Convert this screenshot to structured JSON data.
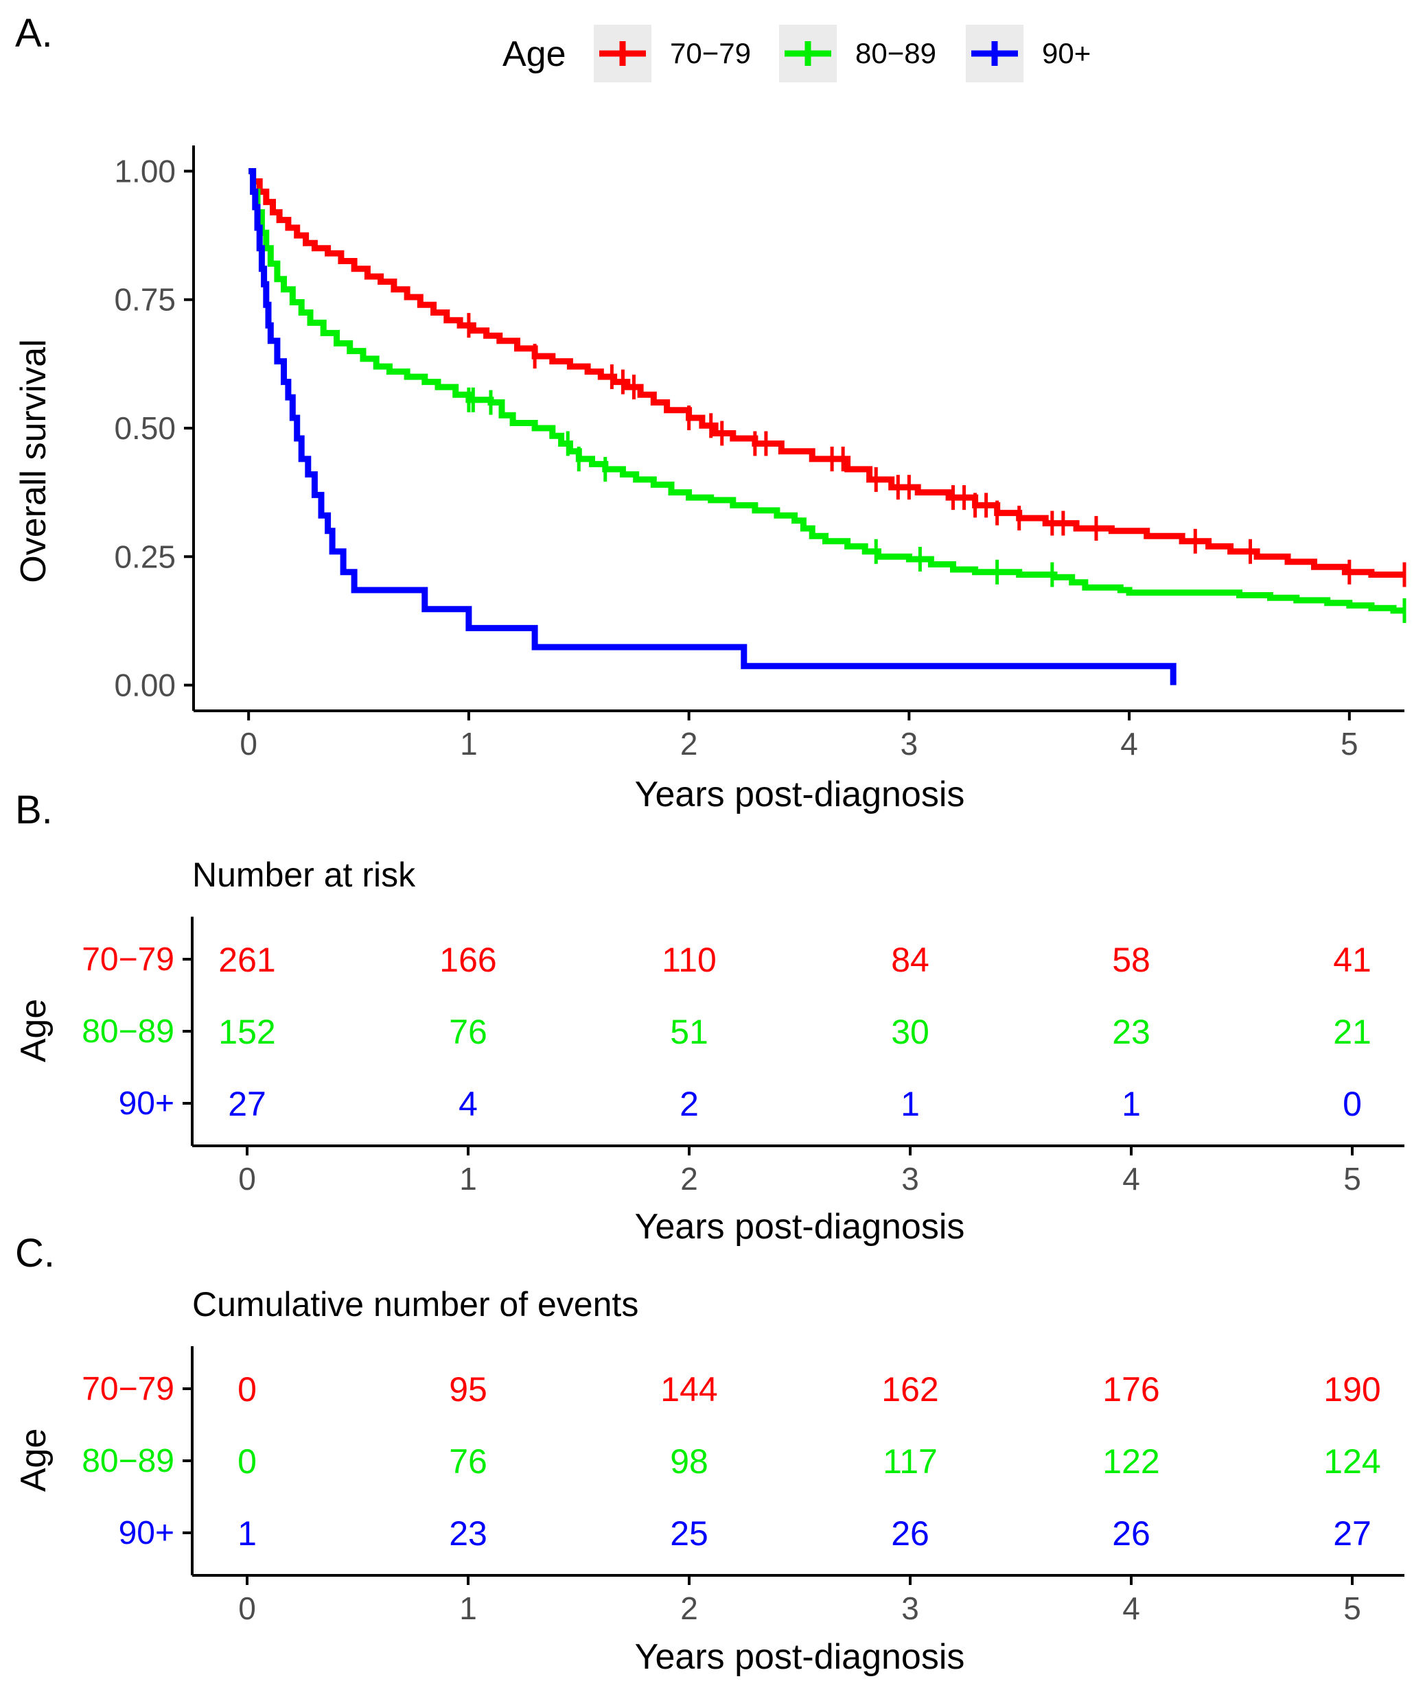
{
  "panel_labels": [
    "A.",
    "B.",
    "C."
  ],
  "colors": {
    "70-79": "#ff0000",
    "80-89": "#00ee00",
    "90+": "#0000ff",
    "axis": "#000000",
    "tick_label": "#4d4d4d",
    "legend_key_bg": "#ebebeb"
  },
  "chart_data": [
    {
      "type": "line",
      "subtype": "kaplan-meier step",
      "title": "",
      "xlabel": "Years post-diagnosis",
      "ylabel": "Overall survival",
      "xlim": [
        -0.25,
        5.25
      ],
      "ylim": [
        -0.05,
        1.05
      ],
      "x_ticks": [
        0,
        1,
        2,
        3,
        4,
        5
      ],
      "x_tick_labels": [
        "0",
        "1",
        "2",
        "3",
        "4",
        "5"
      ],
      "y_ticks": [
        0,
        0.25,
        0.5,
        0.75,
        1.0
      ],
      "y_tick_labels": [
        "0.00",
        "0.25",
        "0.50",
        "0.75",
        "1.00"
      ],
      "legend": {
        "title": "Age",
        "position": "top",
        "entries": [
          "70−79",
          "80−89",
          "90+"
        ]
      },
      "series": [
        {
          "name": "70−79",
          "color_key": "70-79",
          "points": [
            [
              0,
              1.0
            ],
            [
              0.02,
              0.98
            ],
            [
              0.05,
              0.96
            ],
            [
              0.08,
              0.94
            ],
            [
              0.11,
              0.92
            ],
            [
              0.14,
              0.905
            ],
            [
              0.18,
              0.89
            ],
            [
              0.22,
              0.875
            ],
            [
              0.26,
              0.86
            ],
            [
              0.3,
              0.85
            ],
            [
              0.36,
              0.84
            ],
            [
              0.42,
              0.825
            ],
            [
              0.48,
              0.81
            ],
            [
              0.54,
              0.795
            ],
            [
              0.6,
              0.785
            ],
            [
              0.66,
              0.77
            ],
            [
              0.72,
              0.755
            ],
            [
              0.78,
              0.74
            ],
            [
              0.84,
              0.725
            ],
            [
              0.9,
              0.71
            ],
            [
              0.96,
              0.7
            ],
            [
              1.02,
              0.69
            ],
            [
              1.08,
              0.68
            ],
            [
              1.14,
              0.67
            ],
            [
              1.22,
              0.655
            ],
            [
              1.3,
              0.64
            ],
            [
              1.38,
              0.63
            ],
            [
              1.46,
              0.62
            ],
            [
              1.54,
              0.61
            ],
            [
              1.6,
              0.6
            ],
            [
              1.66,
              0.59
            ],
            [
              1.72,
              0.58
            ],
            [
              1.78,
              0.565
            ],
            [
              1.84,
              0.55
            ],
            [
              1.9,
              0.535
            ],
            [
              2.0,
              0.52
            ],
            [
              2.06,
              0.505
            ],
            [
              2.12,
              0.49
            ],
            [
              2.2,
              0.48
            ],
            [
              2.3,
              0.47
            ],
            [
              2.42,
              0.455
            ],
            [
              2.56,
              0.44
            ],
            [
              2.72,
              0.42
            ],
            [
              2.82,
              0.4
            ],
            [
              2.92,
              0.385
            ],
            [
              3.04,
              0.375
            ],
            [
              3.18,
              0.365
            ],
            [
              3.3,
              0.35
            ],
            [
              3.4,
              0.335
            ],
            [
              3.5,
              0.325
            ],
            [
              3.62,
              0.315
            ],
            [
              3.76,
              0.305
            ],
            [
              3.92,
              0.3
            ],
            [
              4.08,
              0.29
            ],
            [
              4.24,
              0.28
            ],
            [
              4.36,
              0.27
            ],
            [
              4.46,
              0.26
            ],
            [
              4.58,
              0.25
            ],
            [
              4.72,
              0.24
            ],
            [
              4.84,
              0.23
            ],
            [
              4.98,
              0.22
            ],
            [
              5.1,
              0.215
            ],
            [
              5.25,
              0.215
            ]
          ],
          "censor_x": [
            1.0,
            1.3,
            1.65,
            1.7,
            1.75,
            2.0,
            2.1,
            2.15,
            2.3,
            2.35,
            2.65,
            2.7,
            2.85,
            2.95,
            3.0,
            3.2,
            3.25,
            3.3,
            3.35,
            3.4,
            3.5,
            3.65,
            3.7,
            3.85,
            4.3,
            4.55,
            5.0,
            5.25
          ]
        },
        {
          "name": "80−89",
          "color_key": "80-89",
          "points": [
            [
              0,
              1.0
            ],
            [
              0.02,
              0.96
            ],
            [
              0.04,
              0.92
            ],
            [
              0.06,
              0.88
            ],
            [
              0.08,
              0.85
            ],
            [
              0.1,
              0.82
            ],
            [
              0.13,
              0.79
            ],
            [
              0.16,
              0.77
            ],
            [
              0.2,
              0.745
            ],
            [
              0.24,
              0.725
            ],
            [
              0.28,
              0.705
            ],
            [
              0.34,
              0.685
            ],
            [
              0.4,
              0.665
            ],
            [
              0.46,
              0.65
            ],
            [
              0.52,
              0.635
            ],
            [
              0.58,
              0.62
            ],
            [
              0.64,
              0.61
            ],
            [
              0.72,
              0.6
            ],
            [
              0.8,
              0.59
            ],
            [
              0.86,
              0.58
            ],
            [
              0.94,
              0.565
            ],
            [
              1.0,
              0.555
            ],
            [
              1.1,
              0.55
            ],
            [
              1.15,
              0.525
            ],
            [
              1.2,
              0.51
            ],
            [
              1.3,
              0.5
            ],
            [
              1.38,
              0.485
            ],
            [
              1.42,
              0.47
            ],
            [
              1.46,
              0.455
            ],
            [
              1.5,
              0.44
            ],
            [
              1.56,
              0.43
            ],
            [
              1.62,
              0.42
            ],
            [
              1.7,
              0.41
            ],
            [
              1.76,
              0.4
            ],
            [
              1.84,
              0.39
            ],
            [
              1.92,
              0.375
            ],
            [
              2.0,
              0.365
            ],
            [
              2.1,
              0.36
            ],
            [
              2.2,
              0.35
            ],
            [
              2.3,
              0.34
            ],
            [
              2.4,
              0.33
            ],
            [
              2.48,
              0.32
            ],
            [
              2.52,
              0.305
            ],
            [
              2.56,
              0.29
            ],
            [
              2.62,
              0.28
            ],
            [
              2.72,
              0.27
            ],
            [
              2.8,
              0.26
            ],
            [
              2.86,
              0.25
            ],
            [
              3.0,
              0.245
            ],
            [
              3.1,
              0.235
            ],
            [
              3.2,
              0.225
            ],
            [
              3.3,
              0.22
            ],
            [
              3.5,
              0.215
            ],
            [
              3.66,
              0.21
            ],
            [
              3.74,
              0.2
            ],
            [
              3.8,
              0.19
            ],
            [
              3.96,
              0.185
            ],
            [
              4.0,
              0.18
            ],
            [
              4.2,
              0.18
            ],
            [
              4.5,
              0.175
            ],
            [
              4.64,
              0.17
            ],
            [
              4.76,
              0.165
            ],
            [
              4.9,
              0.16
            ],
            [
              5.0,
              0.155
            ],
            [
              5.1,
              0.15
            ],
            [
              5.2,
              0.145
            ],
            [
              5.25,
              0.145
            ]
          ],
          "censor_x": [
            1.0,
            1.02,
            1.1,
            1.45,
            1.5,
            1.62,
            2.85,
            3.05,
            3.4,
            3.65,
            5.25
          ]
        },
        {
          "name": "90+",
          "color_key": "90+",
          "points": [
            [
              0,
              1.0
            ],
            [
              0.02,
              0.96
            ],
            [
              0.03,
              0.93
            ],
            [
              0.04,
              0.89
            ],
            [
              0.05,
              0.85
            ],
            [
              0.06,
              0.81
            ],
            [
              0.07,
              0.78
            ],
            [
              0.08,
              0.74
            ],
            [
              0.09,
              0.7
            ],
            [
              0.1,
              0.67
            ],
            [
              0.13,
              0.63
            ],
            [
              0.16,
              0.59
            ],
            [
              0.18,
              0.56
            ],
            [
              0.2,
              0.52
            ],
            [
              0.22,
              0.48
            ],
            [
              0.24,
              0.44
            ],
            [
              0.27,
              0.41
            ],
            [
              0.3,
              0.37
            ],
            [
              0.33,
              0.33
            ],
            [
              0.36,
              0.3
            ],
            [
              0.38,
              0.26
            ],
            [
              0.43,
              0.22
            ],
            [
              0.48,
              0.185
            ],
            [
              0.8,
              0.185
            ],
            [
              0.8,
              0.148
            ],
            [
              1.0,
              0.148
            ],
            [
              1.0,
              0.111
            ],
            [
              1.3,
              0.111
            ],
            [
              1.3,
              0.074
            ],
            [
              2.25,
              0.074
            ],
            [
              2.25,
              0.037
            ],
            [
              4.2,
              0.037
            ],
            [
              4.2,
              0.0
            ]
          ],
          "censor_x": []
        }
      ]
    },
    {
      "type": "table",
      "title": "Number at risk",
      "xlabel": "Years post-diagnosis",
      "ylabel": "Age",
      "x_ticks": [
        0,
        1,
        2,
        3,
        4,
        5
      ],
      "x_tick_labels": [
        "0",
        "1",
        "2",
        "3",
        "4",
        "5"
      ],
      "rows": [
        {
          "label": "70−79",
          "color_key": "70-79",
          "values": [
            261,
            166,
            110,
            84,
            58,
            41
          ]
        },
        {
          "label": "80−89",
          "color_key": "80-89",
          "values": [
            152,
            76,
            51,
            30,
            23,
            21
          ]
        },
        {
          "label": "90+",
          "color_key": "90+",
          "values": [
            27,
            4,
            2,
            1,
            1,
            0
          ]
        }
      ]
    },
    {
      "type": "table",
      "title": "Cumulative number of events",
      "xlabel": "Years post-diagnosis",
      "ylabel": "Age",
      "x_ticks": [
        0,
        1,
        2,
        3,
        4,
        5
      ],
      "x_tick_labels": [
        "0",
        "1",
        "2",
        "3",
        "4",
        "5"
      ],
      "rows": [
        {
          "label": "70−79",
          "color_key": "70-79",
          "values": [
            0,
            95,
            144,
            162,
            176,
            190
          ]
        },
        {
          "label": "80−89",
          "color_key": "80-89",
          "values": [
            0,
            76,
            98,
            117,
            122,
            124
          ]
        },
        {
          "label": "90+",
          "color_key": "90+",
          "values": [
            1,
            23,
            25,
            26,
            26,
            27
          ]
        }
      ]
    }
  ]
}
